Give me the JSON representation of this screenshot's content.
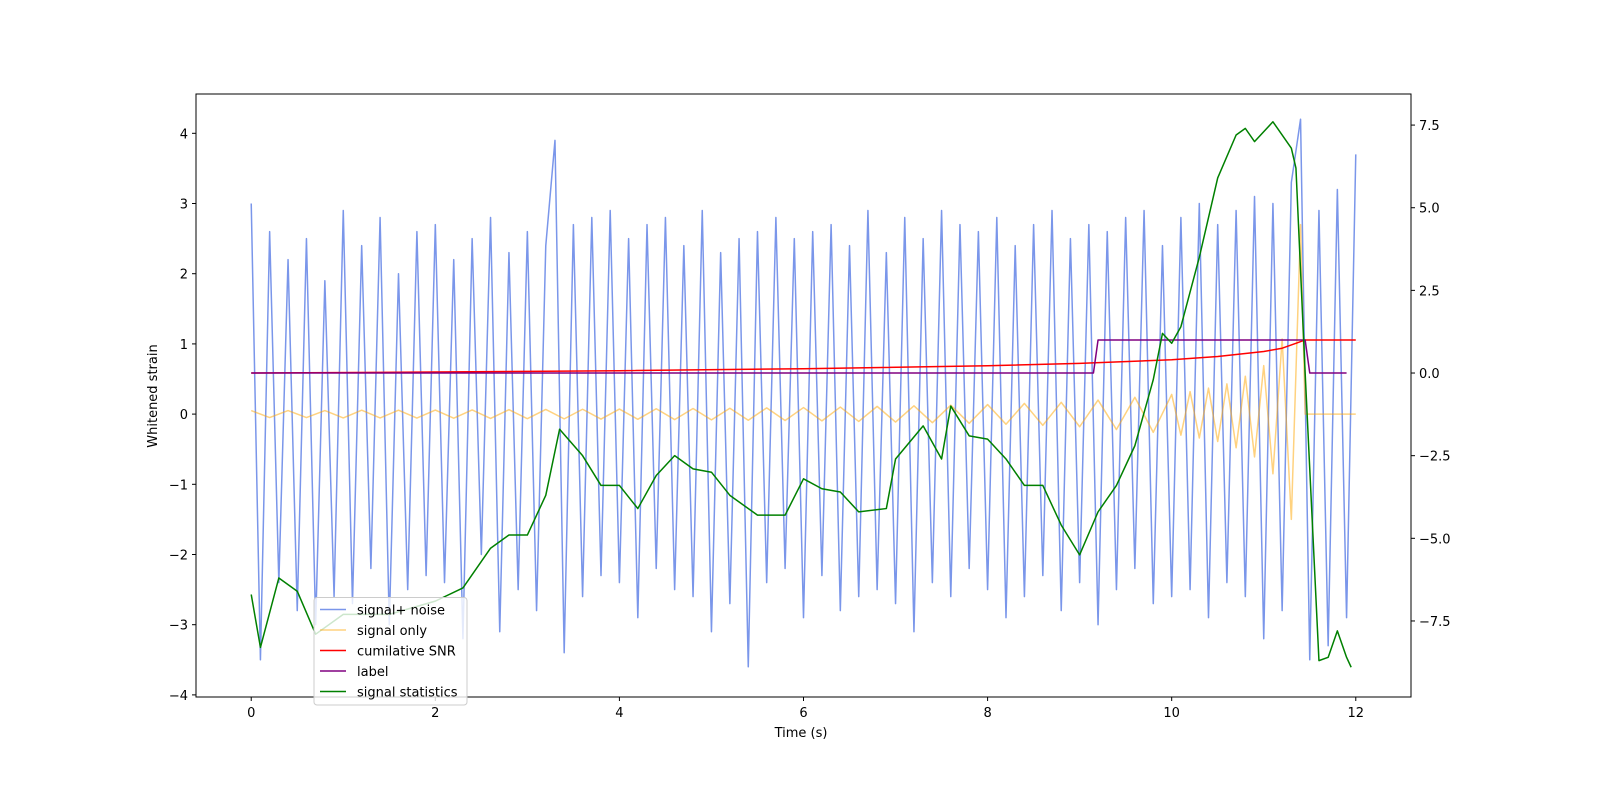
{
  "chart_data": {
    "type": "line",
    "xlabel": "Time (s)",
    "ylabel": "Whitened strain",
    "xlim": [
      -0.6,
      12.6
    ],
    "ylim": [
      -4.03,
      4.56
    ],
    "y2lim": [
      -9.8,
      8.44
    ],
    "xticks": [
      0,
      2,
      4,
      6,
      8,
      10,
      12
    ],
    "yticks": [
      {
        "value": -4,
        "label": "−4"
      },
      {
        "value": -3,
        "label": "−3"
      },
      {
        "value": -2,
        "label": "−2"
      },
      {
        "value": -1,
        "label": "−1"
      },
      0,
      1,
      2,
      3,
      4
    ],
    "y2ticks": [
      {
        "value": -7.5,
        "label": "−7.5"
      },
      {
        "value": -5,
        "label": "−5.0"
      },
      {
        "value": -2.5,
        "label": "−2.5"
      },
      {
        "value": 0,
        "label": "0.0"
      },
      2.5,
      {
        "value": 5,
        "label": "5.0"
      },
      7.5
    ],
    "legend": "lower left",
    "series": [
      {
        "name": "signal+ noise",
        "color": "#4169e1",
        "opacity": 0.7,
        "x": [
          0,
          0.1,
          0.2,
          0.3,
          0.4,
          0.5,
          0.6,
          0.7,
          0.8,
          0.9,
          1,
          1.1,
          1.2,
          1.3,
          1.4,
          1.5,
          1.6,
          1.7,
          1.8,
          1.9,
          2,
          2.1,
          2.2,
          2.3,
          2.4,
          2.5,
          2.6,
          2.7,
          2.8,
          2.9,
          3,
          3.1,
          3.2,
          3.3,
          3.4,
          3.5,
          3.6,
          3.7,
          3.8,
          3.9,
          4,
          4.1,
          4.2,
          4.3,
          4.4,
          4.5,
          4.6,
          4.7,
          4.8,
          4.9,
          5,
          5.1,
          5.2,
          5.3,
          5.4,
          5.5,
          5.6,
          5.7,
          5.8,
          5.9,
          6,
          6.1,
          6.2,
          6.3,
          6.4,
          6.5,
          6.6,
          6.7,
          6.8,
          6.9,
          7,
          7.1,
          7.2,
          7.3,
          7.4,
          7.5,
          7.6,
          7.7,
          7.8,
          7.9,
          8,
          8.1,
          8.2,
          8.3,
          8.4,
          8.5,
          8.6,
          8.7,
          8.8,
          8.9,
          9,
          9.1,
          9.2,
          9.3,
          9.4,
          9.5,
          9.6,
          9.7,
          9.8,
          9.9,
          10,
          10.1,
          10.2,
          10.3,
          10.4,
          10.5,
          10.6,
          10.7,
          10.8,
          10.9,
          11,
          11.1,
          11.2,
          11.3,
          11.4,
          11.5,
          11.6,
          11.7,
          11.8,
          11.9,
          12
        ],
        "values": [
          3.0,
          -3.5,
          2.6,
          -2.4,
          2.2,
          -2.8,
          2.5,
          -3.0,
          1.9,
          -2.6,
          2.9,
          -2.7,
          2.4,
          -2.2,
          2.8,
          -3.0,
          2.0,
          -2.5,
          2.6,
          -2.3,
          2.7,
          -2.4,
          2.2,
          -3.2,
          2.5,
          -2.0,
          2.8,
          -3.1,
          2.3,
          -2.5,
          2.6,
          -2.8,
          2.4,
          3.9,
          -3.4,
          2.7,
          -2.6,
          2.8,
          -2.3,
          2.9,
          -2.4,
          2.5,
          -2.9,
          2.7,
          -2.2,
          2.8,
          -2.5,
          2.4,
          -2.6,
          2.9,
          -3.1,
          2.3,
          -2.7,
          2.5,
          -3.6,
          2.6,
          -2.4,
          2.8,
          -2.2,
          2.5,
          -2.9,
          2.6,
          -2.3,
          2.7,
          -2.8,
          2.4,
          -2.6,
          2.9,
          -2.5,
          2.3,
          -2.7,
          2.8,
          -3.1,
          2.5,
          -2.4,
          2.9,
          -2.6,
          2.7,
          -2.2,
          2.6,
          -2.5,
          2.8,
          -2.9,
          2.4,
          -2.6,
          2.7,
          -2.3,
          2.9,
          -2.8,
          2.5,
          -2.4,
          2.7,
          -3.0,
          2.6,
          -2.5,
          2.8,
          -2.2,
          2.9,
          -2.7,
          2.4,
          -2.6,
          2.8,
          -2.5,
          3.0,
          -2.9,
          2.7,
          -2.4,
          2.9,
          -2.6,
          3.1,
          -3.2,
          3.0,
          -2.8,
          3.3,
          4.2,
          -3.5,
          2.9,
          -3.3,
          3.2,
          -2.9,
          3.7
        ]
      },
      {
        "name": "signal only",
        "color": "#ffa500",
        "opacity": 0.5,
        "x": [
          0,
          0.2,
          0.4,
          0.6,
          0.8,
          1,
          1.2,
          1.4,
          1.6,
          1.8,
          2,
          2.2,
          2.4,
          2.6,
          2.8,
          3,
          3.2,
          3.4,
          3.6,
          3.8,
          4,
          4.2,
          4.4,
          4.6,
          4.8,
          5,
          5.2,
          5.4,
          5.6,
          5.8,
          6,
          6.2,
          6.4,
          6.6,
          6.8,
          7,
          7.2,
          7.4,
          7.6,
          7.8,
          8,
          8.2,
          8.4,
          8.6,
          8.8,
          9,
          9.2,
          9.4,
          9.6,
          9.8,
          10,
          10.1,
          10.2,
          10.3,
          10.4,
          10.5,
          10.6,
          10.7,
          10.8,
          10.9,
          11,
          11.1,
          11.2,
          11.3,
          11.4,
          11.45,
          12
        ],
        "values": [
          0.05,
          -0.05,
          0.05,
          -0.05,
          0.05,
          -0.054,
          0.055,
          -0.055,
          0.056,
          -0.057,
          0.058,
          -0.059,
          0.06,
          -0.062,
          0.063,
          -0.065,
          0.066,
          -0.068,
          0.069,
          -0.071,
          0.072,
          -0.074,
          0.076,
          -0.078,
          0.08,
          -0.082,
          0.084,
          -0.087,
          0.089,
          -0.091,
          0.093,
          -0.097,
          0.1,
          -0.105,
          0.11,
          -0.114,
          0.118,
          -0.122,
          0.127,
          -0.131,
          0.136,
          -0.144,
          0.152,
          -0.16,
          0.168,
          -0.18,
          0.2,
          -0.22,
          0.24,
          -0.26,
          0.28,
          -0.3,
          0.32,
          -0.34,
          0.37,
          -0.39,
          0.43,
          -0.48,
          0.54,
          -0.61,
          0.69,
          -0.85,
          1.07,
          -1.5,
          2.7,
          0,
          0
        ]
      },
      {
        "name": "cumilative SNR",
        "color": "#ff0000",
        "axis": "y2",
        "x": [
          0,
          2,
          4,
          6,
          8,
          9,
          10,
          10.5,
          11,
          11.2,
          11.35,
          11.45,
          12
        ],
        "values": [
          0,
          0.03,
          0.07,
          0.13,
          0.22,
          0.29,
          0.4,
          0.5,
          0.65,
          0.75,
          0.9,
          1.0,
          1.0
        ]
      },
      {
        "name": "label",
        "color": "#800080",
        "axis": "y2",
        "x": [
          0,
          9.15,
          9.2,
          11.45,
          11.5,
          11.9
        ],
        "values": [
          0,
          0,
          1,
          1,
          0,
          0
        ]
      },
      {
        "name": "signal statistics",
        "color": "#008000",
        "axis": "y2",
        "x": [
          0,
          0.1,
          0.3,
          0.5,
          0.7,
          1.0,
          1.5,
          2.0,
          2.3,
          2.6,
          2.8,
          3.0,
          3.2,
          3.35,
          3.6,
          3.8,
          4.0,
          4.2,
          4.4,
          4.6,
          4.8,
          5.0,
          5.2,
          5.5,
          5.8,
          6.0,
          6.2,
          6.4,
          6.6,
          6.9,
          7.0,
          7.3,
          7.5,
          7.6,
          7.8,
          8.0,
          8.2,
          8.4,
          8.6,
          8.8,
          9.0,
          9.2,
          9.4,
          9.6,
          9.8,
          9.9,
          10.0,
          10.1,
          10.3,
          10.5,
          10.7,
          10.8,
          10.9,
          11.1,
          11.3,
          11.35,
          11.45,
          11.6,
          11.7,
          11.8,
          11.9,
          11.95
        ],
        "values": [
          -6.7,
          -8.3,
          -6.2,
          -6.6,
          -7.9,
          -7.3,
          -7.3,
          -6.9,
          -6.5,
          -5.3,
          -4.9,
          -4.9,
          -3.7,
          -1.7,
          -2.5,
          -3.4,
          -3.4,
          -4.1,
          -3.1,
          -2.5,
          -2.9,
          -3.0,
          -3.7,
          -4.3,
          -4.3,
          -3.2,
          -3.5,
          -3.6,
          -4.2,
          -4.1,
          -2.6,
          -1.6,
          -2.6,
          -1.0,
          -1.9,
          -2.0,
          -2.6,
          -3.4,
          -3.4,
          -4.6,
          -5.5,
          -4.2,
          -3.4,
          -2.2,
          -0.2,
          1.2,
          0.9,
          1.4,
          3.5,
          5.9,
          7.2,
          7.4,
          7.0,
          7.6,
          6.8,
          6.2,
          0,
          -8.7,
          -8.6,
          -7.8,
          -8.6,
          -8.9
        ]
      }
    ]
  }
}
